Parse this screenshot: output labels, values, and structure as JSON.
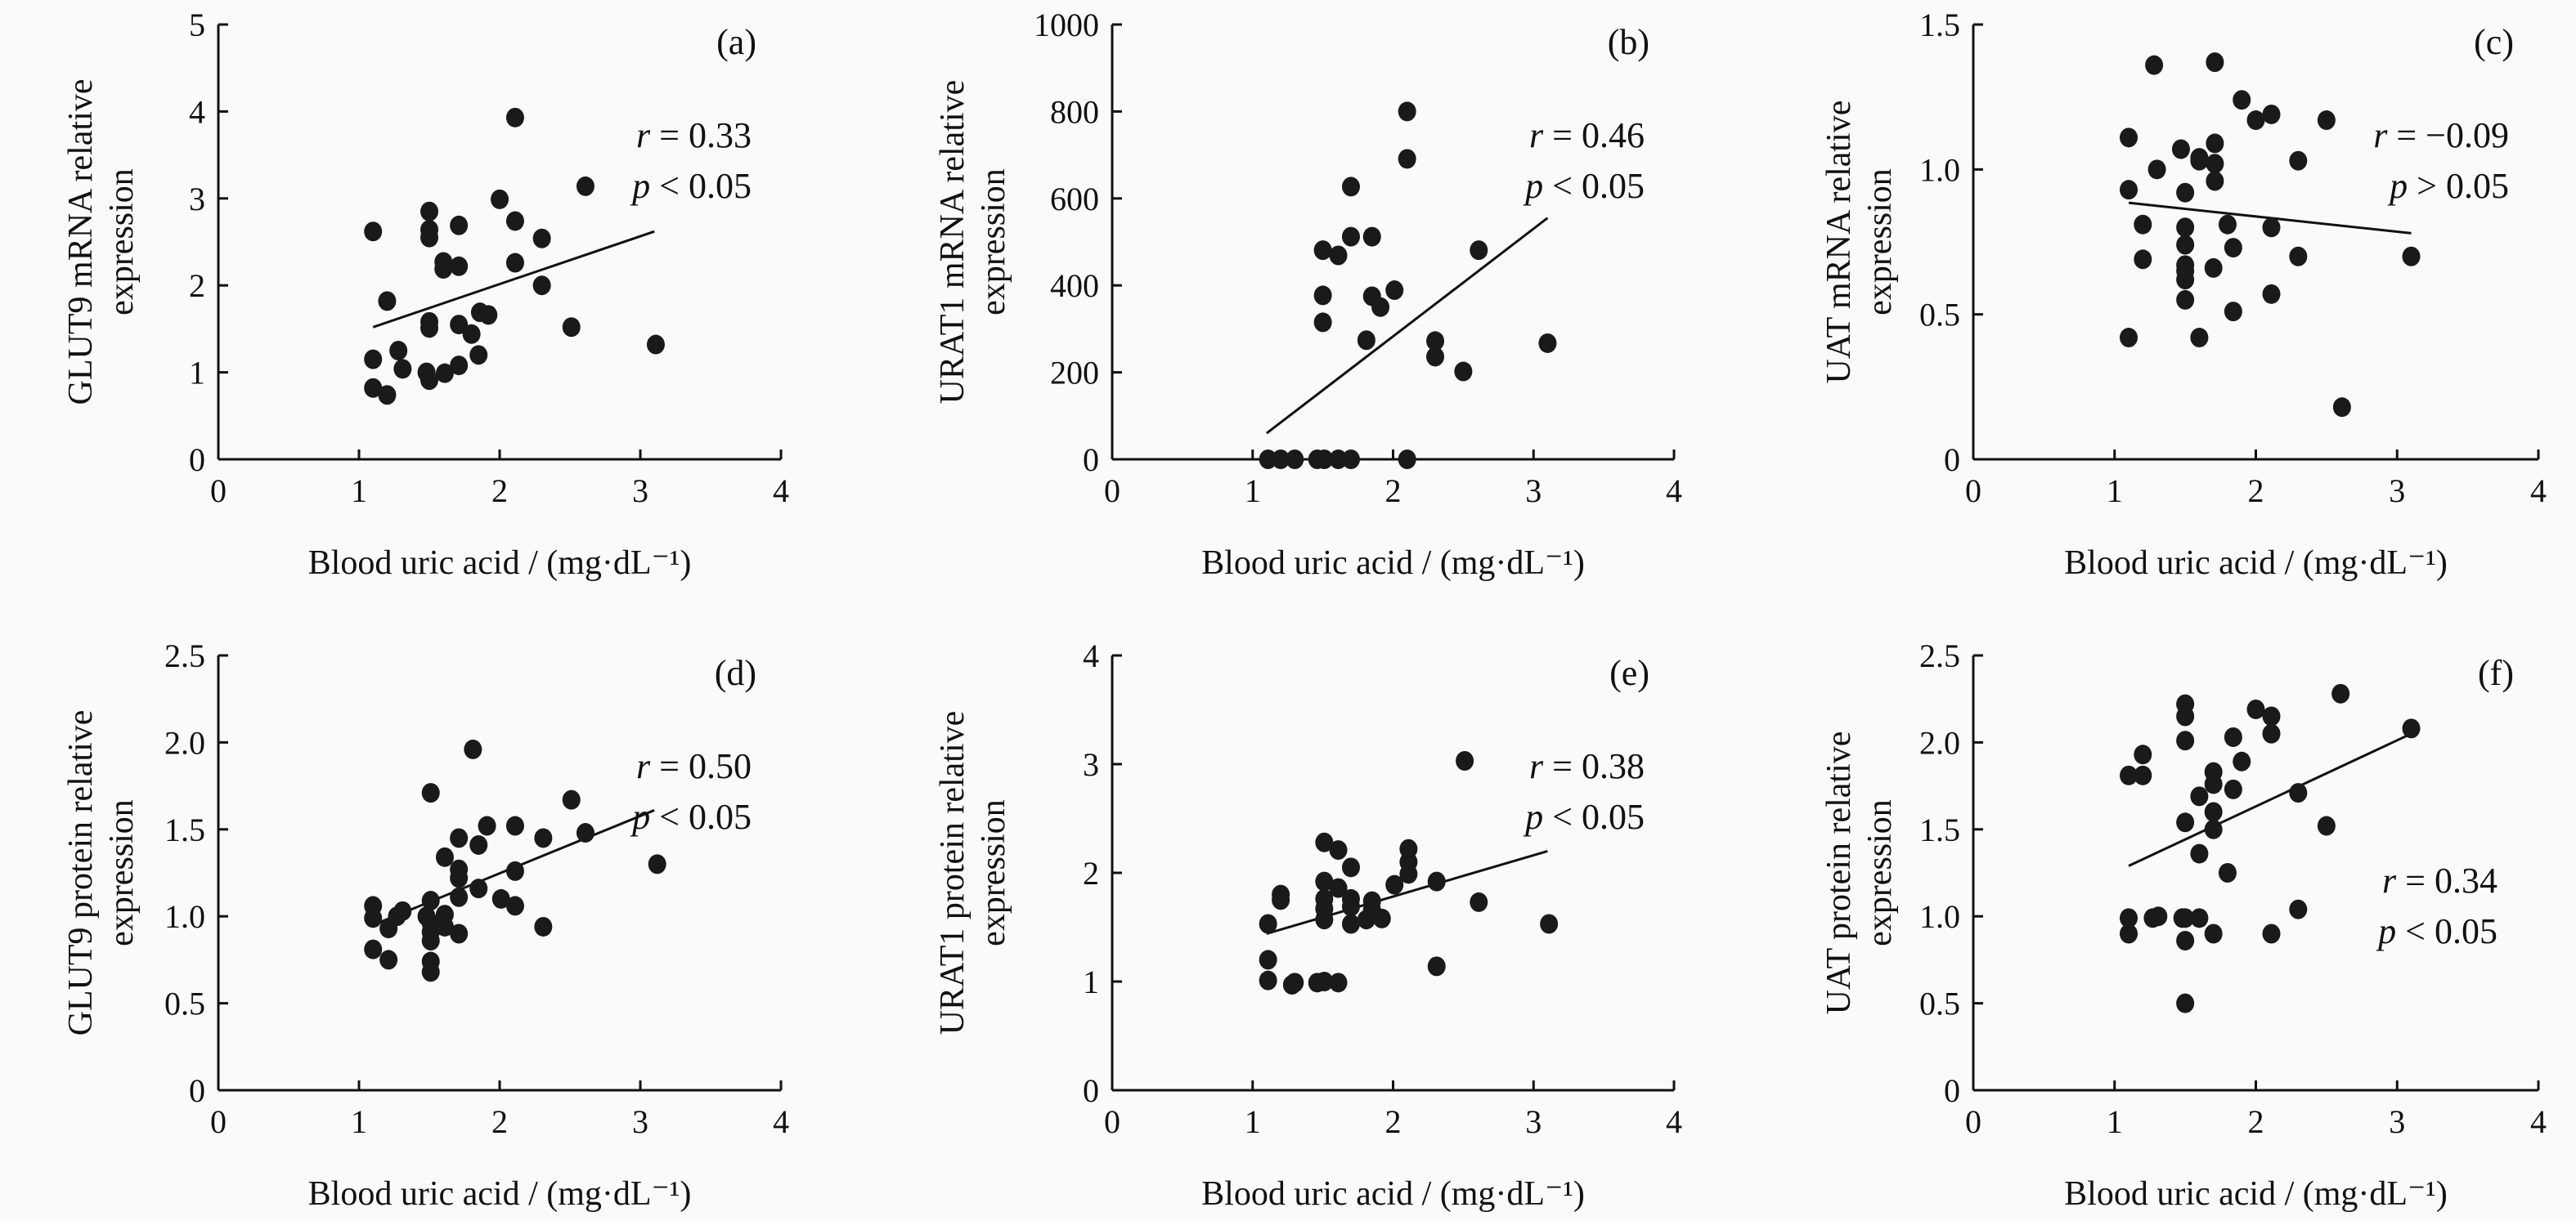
{
  "colors": {
    "background": "#fafafa",
    "marker": "#1a1a1a",
    "axis": "#111111"
  },
  "chart_data": [
    {
      "type": "scatter",
      "panel_label": "(a)",
      "ylabel_lines": [
        "GLUT9 mRNA relative",
        "expression"
      ],
      "xlabel": "Blood uric acid / (mg·dL⁻¹)",
      "xlim": [
        0,
        4
      ],
      "xticks": [
        "0",
        "1",
        "2",
        "3",
        "4"
      ],
      "ylim": [
        0,
        5
      ],
      "yticks": [
        "0",
        "1",
        "2",
        "3",
        "4",
        "5"
      ],
      "annotation": {
        "r_symbol": "r",
        "r_value": "= 0.33",
        "p_symbol": "p",
        "p_value": "< 0.05"
      },
      "fit_line": [
        [
          1.1,
          1.52
        ],
        [
          3.1,
          2.62
        ]
      ],
      "points": [
        [
          1.1,
          2.62
        ],
        [
          1.5,
          2.85
        ],
        [
          1.5,
          2.64
        ],
        [
          1.5,
          2.55
        ],
        [
          1.71,
          2.69
        ],
        [
          2.11,
          3.93
        ],
        [
          2.0,
          2.99
        ],
        [
          2.11,
          2.74
        ],
        [
          2.61,
          3.14
        ],
        [
          2.3,
          2.54
        ],
        [
          1.6,
          2.27
        ],
        [
          1.6,
          2.19
        ],
        [
          1.71,
          2.22
        ],
        [
          2.11,
          2.26
        ],
        [
          2.3,
          2.0
        ],
        [
          1.2,
          1.82
        ],
        [
          1.86,
          1.69
        ],
        [
          1.92,
          1.66
        ],
        [
          1.5,
          1.58
        ],
        [
          1.5,
          1.51
        ],
        [
          1.71,
          1.55
        ],
        [
          1.8,
          1.44
        ],
        [
          2.51,
          1.52
        ],
        [
          3.11,
          1.32
        ],
        [
          1.1,
          1.15
        ],
        [
          1.28,
          1.25
        ],
        [
          1.31,
          1.04
        ],
        [
          1.85,
          1.2
        ],
        [
          1.71,
          1.08
        ],
        [
          1.61,
          0.99
        ],
        [
          1.48,
          1.0
        ],
        [
          1.5,
          0.91
        ],
        [
          1.1,
          0.82
        ],
        [
          1.2,
          0.74
        ]
      ]
    },
    {
      "type": "scatter",
      "panel_label": "(b)",
      "ylabel_lines": [
        "URAT1 mRNA relative",
        "expression"
      ],
      "xlabel": "Blood uric acid / (mg·dL⁻¹)",
      "xlim": [
        0,
        4
      ],
      "xticks": [
        "0",
        "1",
        "2",
        "3",
        "4"
      ],
      "ylim": [
        0,
        1000
      ],
      "yticks": [
        "0",
        "200",
        "400",
        "600",
        "800",
        "1000"
      ],
      "annotation": {
        "r_symbol": "r",
        "r_value": "= 0.46",
        "p_symbol": "p",
        "p_value": "< 0.05"
      },
      "fit_line": [
        [
          1.1,
          60
        ],
        [
          3.1,
          555
        ]
      ],
      "points": [
        [
          2.1,
          800
        ],
        [
          2.1,
          691
        ],
        [
          1.7,
          627
        ],
        [
          1.7,
          512
        ],
        [
          1.85,
          512
        ],
        [
          1.5,
          481
        ],
        [
          1.61,
          469
        ],
        [
          2.61,
          481
        ],
        [
          1.5,
          377
        ],
        [
          1.85,
          375
        ],
        [
          1.91,
          350
        ],
        [
          2.01,
          389
        ],
        [
          1.5,
          315
        ],
        [
          1.81,
          274
        ],
        [
          2.3,
          272
        ],
        [
          2.3,
          236
        ],
        [
          2.5,
          202
        ],
        [
          3.1,
          267
        ],
        [
          1.11,
          0
        ],
        [
          1.2,
          0
        ],
        [
          1.3,
          0
        ],
        [
          1.46,
          0
        ],
        [
          1.51,
          0
        ],
        [
          1.61,
          0
        ],
        [
          1.7,
          0
        ],
        [
          2.1,
          0
        ]
      ]
    },
    {
      "type": "scatter",
      "panel_label": "(c)",
      "ylabel_lines": [
        "UAT mRNA relative",
        "expression"
      ],
      "xlabel": "Blood uric acid / (mg·dL⁻¹)",
      "xlim": [
        0,
        4
      ],
      "xticks": [
        "0",
        "1",
        "2",
        "3",
        "4"
      ],
      "ylim": [
        0,
        1.5
      ],
      "yticks": [
        "0",
        "0.5",
        "1.0",
        "1.5"
      ],
      "annotation": {
        "r_symbol": "r",
        "r_value": "= −0.09",
        "p_symbol": "p",
        "p_value": "> 0.05"
      },
      "fit_line": [
        [
          1.1,
          0.885
        ],
        [
          3.1,
          0.78
        ]
      ],
      "points": [
        [
          1.28,
          1.36
        ],
        [
          1.71,
          1.37
        ],
        [
          1.9,
          1.24
        ],
        [
          2.0,
          1.17
        ],
        [
          2.11,
          1.19
        ],
        [
          2.5,
          1.17
        ],
        [
          1.1,
          1.11
        ],
        [
          1.47,
          1.07
        ],
        [
          1.6,
          1.04
        ],
        [
          1.6,
          1.03
        ],
        [
          1.71,
          1.09
        ],
        [
          1.71,
          1.02
        ],
        [
          1.71,
          0.96
        ],
        [
          1.3,
          1.0
        ],
        [
          2.3,
          1.03
        ],
        [
          1.1,
          0.93
        ],
        [
          1.5,
          0.92
        ],
        [
          1.2,
          0.81
        ],
        [
          1.5,
          0.8
        ],
        [
          1.8,
          0.81
        ],
        [
          2.11,
          0.8
        ],
        [
          1.5,
          0.74
        ],
        [
          1.84,
          0.73
        ],
        [
          1.2,
          0.69
        ],
        [
          2.3,
          0.7
        ],
        [
          3.1,
          0.7
        ],
        [
          1.5,
          0.67
        ],
        [
          1.5,
          0.65
        ],
        [
          1.5,
          0.62
        ],
        [
          1.7,
          0.66
        ],
        [
          2.11,
          0.57
        ],
        [
          1.5,
          0.55
        ],
        [
          1.84,
          0.51
        ],
        [
          1.1,
          0.42
        ],
        [
          1.6,
          0.42
        ],
        [
          2.61,
          0.18
        ]
      ]
    },
    {
      "type": "scatter",
      "panel_label": "(d)",
      "ylabel_lines": [
        "GLUT9 protein relative",
        "expression"
      ],
      "xlabel": "Blood uric acid / (mg·dL⁻¹)",
      "xlim": [
        0,
        4
      ],
      "xticks": [
        "0",
        "1",
        "2",
        "3",
        "4"
      ],
      "ylim": [
        0,
        2.5
      ],
      "yticks": [
        "0",
        "0.5",
        "1.0",
        "1.5",
        "2.0",
        "2.5"
      ],
      "annotation": {
        "r_symbol": "r",
        "r_value": "= 0.50",
        "p_symbol": "p",
        "p_value": "< 0.05"
      },
      "fit_line": [
        [
          1.1,
          0.95
        ],
        [
          3.1,
          1.61
        ]
      ],
      "points": [
        [
          1.81,
          1.96
        ],
        [
          1.51,
          1.71
        ],
        [
          2.51,
          1.67
        ],
        [
          1.91,
          1.52
        ],
        [
          2.11,
          1.52
        ],
        [
          1.71,
          1.45
        ],
        [
          1.85,
          1.41
        ],
        [
          2.31,
          1.45
        ],
        [
          2.61,
          1.48
        ],
        [
          1.61,
          1.34
        ],
        [
          1.71,
          1.27
        ],
        [
          1.71,
          1.22
        ],
        [
          2.11,
          1.26
        ],
        [
          3.12,
          1.3
        ],
        [
          1.85,
          1.16
        ],
        [
          1.71,
          1.11
        ],
        [
          2.01,
          1.1
        ],
        [
          2.11,
          1.06
        ],
        [
          1.51,
          1.09
        ],
        [
          1.1,
          1.06
        ],
        [
          1.1,
          0.99
        ],
        [
          1.31,
          1.03
        ],
        [
          1.27,
          1.0
        ],
        [
          1.48,
          1.0
        ],
        [
          1.61,
          1.01
        ],
        [
          1.21,
          0.93
        ],
        [
          1.51,
          0.96
        ],
        [
          1.51,
          0.91
        ],
        [
          1.51,
          0.86
        ],
        [
          1.71,
          0.9
        ],
        [
          1.61,
          0.94
        ],
        [
          2.31,
          0.94
        ],
        [
          1.1,
          0.81
        ],
        [
          1.21,
          0.75
        ],
        [
          1.51,
          0.74
        ],
        [
          1.51,
          0.68
        ]
      ]
    },
    {
      "type": "scatter",
      "panel_label": "(e)",
      "ylabel_lines": [
        "URAT1 protein relative",
        "expression"
      ],
      "xlabel": "Blood uric acid / (mg·dL⁻¹)",
      "xlim": [
        0,
        4
      ],
      "xticks": [
        "0",
        "1",
        "2",
        "3",
        "4"
      ],
      "ylim": [
        0,
        4
      ],
      "yticks": [
        "0",
        "1",
        "2",
        "3",
        "4"
      ],
      "annotation": {
        "r_symbol": "r",
        "r_value": "= 0.38",
        "p_symbol": "p",
        "p_value": "< 0.05"
      },
      "fit_line": [
        [
          1.1,
          1.44
        ],
        [
          3.1,
          2.2
        ]
      ],
      "points": [
        [
          2.51,
          3.03
        ],
        [
          1.51,
          2.28
        ],
        [
          1.61,
          2.21
        ],
        [
          1.7,
          2.05
        ],
        [
          2.11,
          2.22
        ],
        [
          2.11,
          2.1
        ],
        [
          2.11,
          1.99
        ],
        [
          2.01,
          1.89
        ],
        [
          2.31,
          1.92
        ],
        [
          1.51,
          1.92
        ],
        [
          1.61,
          1.86
        ],
        [
          1.2,
          1.8
        ],
        [
          1.2,
          1.75
        ],
        [
          1.51,
          1.76
        ],
        [
          1.51,
          1.67
        ],
        [
          1.51,
          1.57
        ],
        [
          1.7,
          1.76
        ],
        [
          1.7,
          1.69
        ],
        [
          1.85,
          1.74
        ],
        [
          1.85,
          1.66
        ],
        [
          1.81,
          1.57
        ],
        [
          1.92,
          1.58
        ],
        [
          1.7,
          1.53
        ],
        [
          2.61,
          1.73
        ],
        [
          1.11,
          1.53
        ],
        [
          3.11,
          1.53
        ],
        [
          1.11,
          1.2
        ],
        [
          2.31,
          1.14
        ],
        [
          1.11,
          1.01
        ],
        [
          1.28,
          0.97
        ],
        [
          1.3,
          0.99
        ],
        [
          1.46,
          0.99
        ],
        [
          1.51,
          1.0
        ],
        [
          1.61,
          0.99
        ]
      ]
    },
    {
      "type": "scatter",
      "panel_label": "(f)",
      "ylabel_lines": [
        "UAT protein relative",
        "expression"
      ],
      "xlabel": "Blood uric acid / (mg·dL⁻¹)",
      "xlim": [
        0,
        4
      ],
      "xticks": [
        "0",
        "1",
        "2",
        "3",
        "4"
      ],
      "ylim": [
        0,
        2.5
      ],
      "yticks": [
        "0",
        "0.5",
        "1.0",
        "1.5",
        "2.0",
        "2.5"
      ],
      "annotation": {
        "r_symbol": "r",
        "r_value": "= 0.34",
        "p_symbol": "p",
        "p_value": "< 0.05"
      },
      "fit_line": [
        [
          1.1,
          1.29
        ],
        [
          3.1,
          2.05
        ]
      ],
      "points": [
        [
          2.6,
          2.28
        ],
        [
          1.5,
          2.22
        ],
        [
          1.5,
          2.15
        ],
        [
          2.0,
          2.19
        ],
        [
          2.11,
          2.15
        ],
        [
          3.1,
          2.08
        ],
        [
          1.5,
          2.01
        ],
        [
          1.84,
          2.03
        ],
        [
          2.11,
          2.05
        ],
        [
          1.2,
          1.93
        ],
        [
          1.9,
          1.89
        ],
        [
          1.1,
          1.81
        ],
        [
          1.2,
          1.81
        ],
        [
          1.7,
          1.83
        ],
        [
          1.7,
          1.76
        ],
        [
          1.84,
          1.73
        ],
        [
          1.6,
          1.69
        ],
        [
          2.3,
          1.71
        ],
        [
          1.7,
          1.6
        ],
        [
          1.5,
          1.54
        ],
        [
          1.7,
          1.5
        ],
        [
          2.5,
          1.52
        ],
        [
          1.6,
          1.36
        ],
        [
          1.8,
          1.25
        ],
        [
          2.3,
          1.04
        ],
        [
          1.1,
          0.99
        ],
        [
          1.1,
          0.9
        ],
        [
          1.27,
          0.99
        ],
        [
          1.31,
          1.0
        ],
        [
          1.48,
          0.99
        ],
        [
          1.5,
          0.99
        ],
        [
          1.6,
          0.99
        ],
        [
          1.7,
          0.9
        ],
        [
          2.11,
          0.9
        ],
        [
          1.5,
          0.86
        ],
        [
          1.5,
          0.5
        ]
      ]
    }
  ]
}
